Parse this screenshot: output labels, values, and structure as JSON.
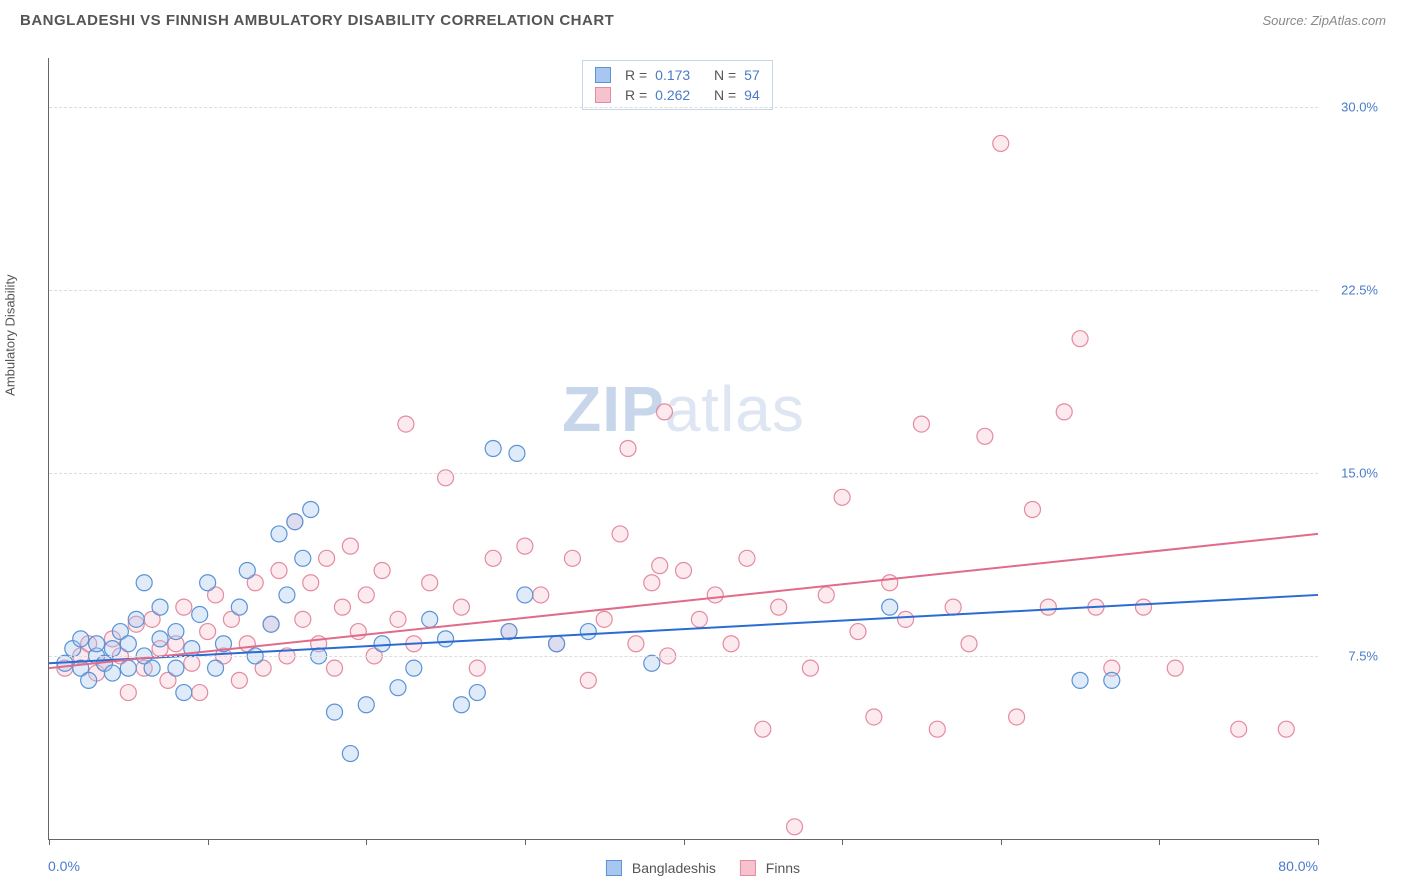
{
  "header": {
    "title": "BANGLADESHI VS FINNISH AMBULATORY DISABILITY CORRELATION CHART",
    "source": "Source: ZipAtlas.com"
  },
  "chart": {
    "type": "scatter",
    "ylabel": "Ambulatory Disability",
    "xlim": [
      0,
      80
    ],
    "ylim": [
      0,
      32
    ],
    "xtick_positions": [
      0,
      10,
      20,
      30,
      40,
      50,
      60,
      70,
      80
    ],
    "ytick_positions": [
      7.5,
      15.0,
      22.5,
      30.0
    ],
    "ytick_labels": [
      "7.5%",
      "15.0%",
      "22.5%",
      "30.0%"
    ],
    "xmin_label": "0.0%",
    "xmax_label": "80.0%",
    "grid_color": "#dddddd",
    "axis_color": "#666666",
    "background_color": "#ffffff",
    "marker_radius": 8,
    "marker_stroke_width": 1.2,
    "marker_fill_opacity": 0.35,
    "line_width": 2,
    "watermark": "ZIPatlas",
    "series": [
      {
        "name": "Bangladeshis",
        "color_fill": "#a7c7f0",
        "color_stroke": "#5b93d6",
        "line_color": "#2b6cd4",
        "r_value": "0.173",
        "n_value": "57",
        "trend": {
          "x1": 0,
          "y1": 7.2,
          "x2": 80,
          "y2": 10.0
        },
        "points": [
          [
            1,
            7.2
          ],
          [
            1.5,
            7.8
          ],
          [
            2,
            7.0
          ],
          [
            2,
            8.2
          ],
          [
            2.5,
            6.5
          ],
          [
            3,
            7.5
          ],
          [
            3,
            8.0
          ],
          [
            3.5,
            7.2
          ],
          [
            4,
            7.8
          ],
          [
            4,
            6.8
          ],
          [
            4.5,
            8.5
          ],
          [
            5,
            7.0
          ],
          [
            5,
            8.0
          ],
          [
            5.5,
            9.0
          ],
          [
            6,
            7.5
          ],
          [
            6,
            10.5
          ],
          [
            6.5,
            7.0
          ],
          [
            7,
            8.2
          ],
          [
            7,
            9.5
          ],
          [
            8,
            7.0
          ],
          [
            8,
            8.5
          ],
          [
            8.5,
            6.0
          ],
          [
            9,
            7.8
          ],
          [
            9.5,
            9.2
          ],
          [
            10,
            10.5
          ],
          [
            10.5,
            7.0
          ],
          [
            11,
            8.0
          ],
          [
            12,
            9.5
          ],
          [
            12.5,
            11.0
          ],
          [
            13,
            7.5
          ],
          [
            14,
            8.8
          ],
          [
            14.5,
            12.5
          ],
          [
            15,
            10.0
          ],
          [
            15.5,
            13.0
          ],
          [
            16,
            11.5
          ],
          [
            16.5,
            13.5
          ],
          [
            17,
            7.5
          ],
          [
            18,
            5.2
          ],
          [
            19,
            3.5
          ],
          [
            20,
            5.5
          ],
          [
            21,
            8.0
          ],
          [
            22,
            6.2
          ],
          [
            23,
            7.0
          ],
          [
            24,
            9.0
          ],
          [
            25,
            8.2
          ],
          [
            26,
            5.5
          ],
          [
            27,
            6.0
          ],
          [
            28,
            16.0
          ],
          [
            29,
            8.5
          ],
          [
            29.5,
            15.8
          ],
          [
            30,
            10.0
          ],
          [
            32,
            8.0
          ],
          [
            34,
            8.5
          ],
          [
            38,
            7.2
          ],
          [
            53,
            9.5
          ],
          [
            65,
            6.5
          ],
          [
            67,
            6.5
          ]
        ]
      },
      {
        "name": "Finns",
        "color_fill": "#f6c2ce",
        "color_stroke": "#e38ba1",
        "line_color": "#e06b8a",
        "r_value": "0.262",
        "n_value": "94",
        "trend": {
          "x1": 0,
          "y1": 7.0,
          "x2": 80,
          "y2": 12.5
        },
        "points": [
          [
            1,
            7.0
          ],
          [
            2,
            7.5
          ],
          [
            2.5,
            8.0
          ],
          [
            3,
            6.8
          ],
          [
            3.5,
            7.2
          ],
          [
            4,
            8.2
          ],
          [
            4.5,
            7.5
          ],
          [
            5,
            6.0
          ],
          [
            5.5,
            8.8
          ],
          [
            6,
            7.0
          ],
          [
            6.5,
            9.0
          ],
          [
            7,
            7.8
          ],
          [
            7.5,
            6.5
          ],
          [
            8,
            8.0
          ],
          [
            8.5,
            9.5
          ],
          [
            9,
            7.2
          ],
          [
            9.5,
            6.0
          ],
          [
            10,
            8.5
          ],
          [
            10.5,
            10.0
          ],
          [
            11,
            7.5
          ],
          [
            11.5,
            9.0
          ],
          [
            12,
            6.5
          ],
          [
            12.5,
            8.0
          ],
          [
            13,
            10.5
          ],
          [
            13.5,
            7.0
          ],
          [
            14,
            8.8
          ],
          [
            14.5,
            11.0
          ],
          [
            15,
            7.5
          ],
          [
            15.5,
            13.0
          ],
          [
            16,
            9.0
          ],
          [
            16.5,
            10.5
          ],
          [
            17,
            8.0
          ],
          [
            17.5,
            11.5
          ],
          [
            18,
            7.0
          ],
          [
            18.5,
            9.5
          ],
          [
            19,
            12.0
          ],
          [
            19.5,
            8.5
          ],
          [
            20,
            10.0
          ],
          [
            20.5,
            7.5
          ],
          [
            21,
            11.0
          ],
          [
            22,
            9.0
          ],
          [
            22.5,
            17.0
          ],
          [
            23,
            8.0
          ],
          [
            24,
            10.5
          ],
          [
            25,
            14.8
          ],
          [
            26,
            9.5
          ],
          [
            27,
            7.0
          ],
          [
            28,
            11.5
          ],
          [
            29,
            8.5
          ],
          [
            30,
            12.0
          ],
          [
            31,
            10.0
          ],
          [
            32,
            8.0
          ],
          [
            33,
            11.5
          ],
          [
            34,
            6.5
          ],
          [
            35,
            9.0
          ],
          [
            36,
            12.5
          ],
          [
            36.5,
            16.0
          ],
          [
            37,
            8.0
          ],
          [
            38,
            10.5
          ],
          [
            38.5,
            11.2
          ],
          [
            38.8,
            17.5
          ],
          [
            39,
            7.5
          ],
          [
            40,
            11.0
          ],
          [
            41,
            9.0
          ],
          [
            42,
            10.0
          ],
          [
            43,
            8.0
          ],
          [
            44,
            11.5
          ],
          [
            45,
            4.5
          ],
          [
            46,
            9.5
          ],
          [
            47,
            0.5
          ],
          [
            48,
            7.0
          ],
          [
            49,
            10.0
          ],
          [
            50,
            14.0
          ],
          [
            51,
            8.5
          ],
          [
            52,
            5.0
          ],
          [
            53,
            10.5
          ],
          [
            54,
            9.0
          ],
          [
            55,
            17.0
          ],
          [
            56,
            4.5
          ],
          [
            57,
            9.5
          ],
          [
            58,
            8.0
          ],
          [
            59,
            16.5
          ],
          [
            60,
            28.5
          ],
          [
            61,
            5.0
          ],
          [
            62,
            13.5
          ],
          [
            63,
            9.5
          ],
          [
            64,
            17.5
          ],
          [
            65,
            20.5
          ],
          [
            66,
            9.5
          ],
          [
            67,
            7.0
          ],
          [
            69,
            9.5
          ],
          [
            71,
            7.0
          ],
          [
            75,
            4.5
          ],
          [
            78,
            4.5
          ]
        ]
      }
    ],
    "bottom_legend": [
      {
        "label": "Bangladeshis",
        "fill": "#a7c7f0",
        "stroke": "#5b93d6"
      },
      {
        "label": "Finns",
        "fill": "#f6c2ce",
        "stroke": "#e38ba1"
      }
    ]
  }
}
